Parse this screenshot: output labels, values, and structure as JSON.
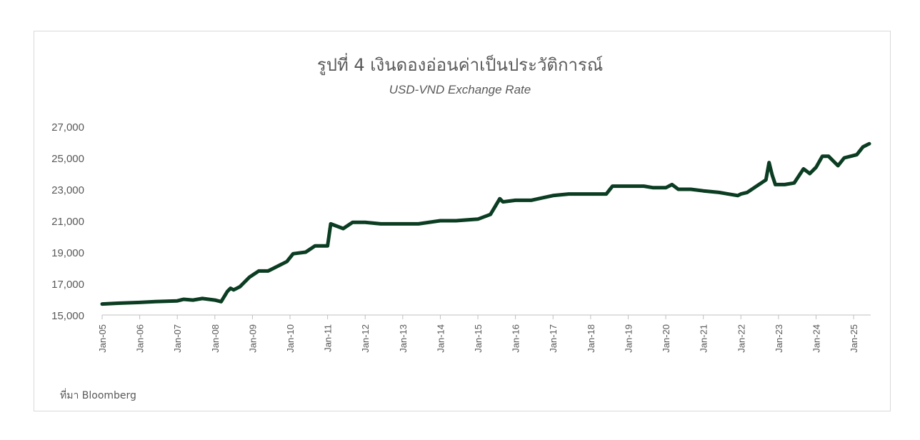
{
  "chart_data": {
    "type": "line",
    "title": "รูปที่ 4 เงินดองอ่อนค่าเป็นประวัติการณ์",
    "subtitle": "USD-VND Exchange Rate",
    "source": "ที่มา Bloomberg",
    "xlabel": "",
    "ylabel": "",
    "ylim": [
      15000,
      27000
    ],
    "xlim": [
      "2005-01",
      "2025-06"
    ],
    "y_ticks": [
      "15,000",
      "17,000",
      "19,000",
      "21,000",
      "23,000",
      "25,000",
      "27,000"
    ],
    "x_ticks": [
      "Jan-05",
      "Jan-06",
      "Jan-07",
      "Jan-08",
      "Jan-09",
      "Jan-10",
      "Jan-11",
      "Jan-12",
      "Jan-13",
      "Jan-14",
      "Jan-15",
      "Jan-16",
      "Jan-17",
      "Jan-18",
      "Jan-19",
      "Jan-20",
      "Jan-21",
      "Jan-22",
      "Jan-23",
      "Jan-24",
      "Jan-25"
    ],
    "grid": false,
    "legend": "none",
    "line_color": "#0b3d22",
    "series": [
      {
        "x": [
          "2005-01",
          "2005-06",
          "2006-01",
          "2006-06",
          "2007-01",
          "2007-03",
          "2007-06",
          "2007-09",
          "2008-01",
          "2008-03",
          "2008-05",
          "2008-06",
          "2008-07",
          "2008-09",
          "2008-12",
          "2009-03",
          "2009-06",
          "2009-12",
          "2010-02",
          "2010-06",
          "2010-09",
          "2011-01",
          "2011-02",
          "2011-06",
          "2011-09",
          "2012-01",
          "2012-06",
          "2013-01",
          "2013-06",
          "2014-01",
          "2014-06",
          "2015-01",
          "2015-05",
          "2015-08",
          "2015-09",
          "2016-01",
          "2016-06",
          "2017-01",
          "2017-06",
          "2018-01",
          "2018-06",
          "2018-08",
          "2019-01",
          "2019-06",
          "2019-09",
          "2020-01",
          "2020-03",
          "2020-05",
          "2020-09",
          "2021-01",
          "2021-06",
          "2021-12",
          "2022-01",
          "2022-03",
          "2022-06",
          "2022-09",
          "2022-10",
          "2022-11",
          "2022-12",
          "2023-03",
          "2023-06",
          "2023-09",
          "2023-11",
          "2024-01",
          "2024-03",
          "2024-05",
          "2024-08",
          "2024-10",
          "2024-12",
          "2025-02",
          "2025-04",
          "2025-06"
        ],
        "values": [
          15700,
          15750,
          15800,
          15850,
          15900,
          16000,
          15950,
          16050,
          15950,
          15850,
          16500,
          16700,
          16600,
          16800,
          17400,
          17800,
          17800,
          18400,
          18900,
          19000,
          19400,
          19400,
          20800,
          20500,
          20900,
          20900,
          20800,
          20800,
          20800,
          21000,
          21000,
          21100,
          21400,
          22400,
          22200,
          22300,
          22300,
          22600,
          22700,
          22700,
          22700,
          23200,
          23200,
          23200,
          23100,
          23100,
          23300,
          23000,
          23000,
          22900,
          22800,
          22600,
          22700,
          22800,
          23200,
          23600,
          24700,
          23900,
          23300,
          23300,
          23400,
          24300,
          24000,
          24400,
          25100,
          25100,
          24500,
          25000,
          25100,
          25200,
          25700,
          25900
        ]
      }
    ]
  }
}
